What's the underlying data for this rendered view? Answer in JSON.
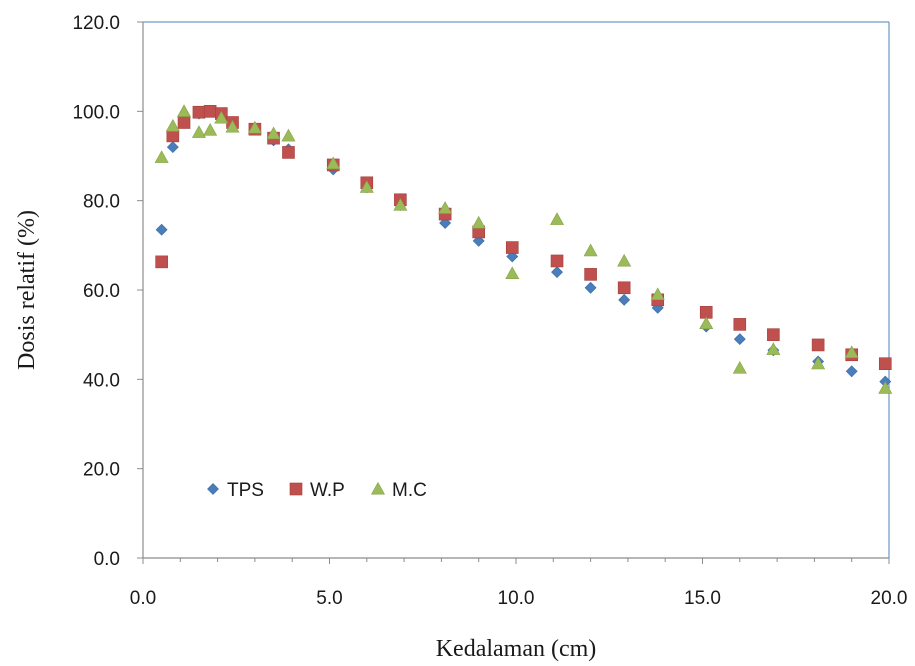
{
  "chart_data": {
    "type": "scatter",
    "title": "",
    "xlabel": "Kedalaman (cm)",
    "ylabel": "Dosis relatif (%)",
    "xlim": [
      0,
      20
    ],
    "ylim": [
      0,
      120
    ],
    "x_ticks": [
      "0.0",
      "5.0",
      "10.0",
      "15.0",
      "20.0"
    ],
    "y_ticks": [
      "0.0",
      "20.0",
      "40.0",
      "60.0",
      "80.0",
      "100.0",
      "120.0"
    ],
    "grid": false,
    "legend_position": "bottom-left",
    "series": [
      {
        "name": "TPS",
        "marker": "diamond",
        "color": "#4a7ebb",
        "points": [
          [
            0.5,
            73.5
          ],
          [
            0.8,
            92.0
          ],
          [
            1.1,
            97.5
          ],
          [
            1.5,
            99.5
          ],
          [
            1.8,
            100.0
          ],
          [
            2.1,
            99.0
          ],
          [
            2.4,
            97.5
          ],
          [
            3.0,
            96.0
          ],
          [
            3.5,
            93.5
          ],
          [
            3.9,
            91.5
          ],
          [
            5.1,
            87.0
          ],
          [
            6.0,
            83.0
          ],
          [
            6.9,
            79.0
          ],
          [
            8.1,
            75.0
          ],
          [
            9.0,
            71.0
          ],
          [
            9.9,
            67.5
          ],
          [
            11.1,
            64.0
          ],
          [
            12.0,
            60.5
          ],
          [
            12.9,
            57.8
          ],
          [
            13.8,
            56.0
          ],
          [
            15.1,
            51.8
          ],
          [
            16.0,
            49.0
          ],
          [
            16.9,
            46.5
          ],
          [
            18.1,
            44.0
          ],
          [
            19.0,
            41.8
          ],
          [
            19.9,
            39.5
          ]
        ]
      },
      {
        "name": "W.P",
        "marker": "square",
        "color": "#c0504d",
        "points": [
          [
            0.5,
            66.3
          ],
          [
            0.8,
            94.5
          ],
          [
            1.1,
            97.5
          ],
          [
            1.5,
            99.8
          ],
          [
            1.8,
            100.0
          ],
          [
            2.1,
            99.5
          ],
          [
            2.4,
            97.5
          ],
          [
            3.0,
            96.0
          ],
          [
            3.5,
            94.0
          ],
          [
            3.9,
            90.8
          ],
          [
            5.1,
            88.0
          ],
          [
            6.0,
            84.0
          ],
          [
            6.9,
            80.2
          ],
          [
            8.1,
            77.0
          ],
          [
            9.0,
            73.0
          ],
          [
            9.9,
            69.5
          ],
          [
            11.1,
            66.5
          ],
          [
            12.0,
            63.5
          ],
          [
            12.9,
            60.5
          ],
          [
            13.8,
            57.8
          ],
          [
            15.1,
            55.0
          ],
          [
            16.0,
            52.3
          ],
          [
            16.9,
            50.0
          ],
          [
            18.1,
            47.7
          ],
          [
            19.0,
            45.5
          ],
          [
            19.9,
            43.5
          ]
        ]
      },
      {
        "name": "M.C",
        "marker": "triangle",
        "color": "#9bbb59",
        "points": [
          [
            0.5,
            89.7
          ],
          [
            0.8,
            96.7
          ],
          [
            1.1,
            100.0
          ],
          [
            1.5,
            95.3
          ],
          [
            1.8,
            95.8
          ],
          [
            2.1,
            98.5
          ],
          [
            2.4,
            96.5
          ],
          [
            3.0,
            96.3
          ],
          [
            3.5,
            95.0
          ],
          [
            3.9,
            94.5
          ],
          [
            5.1,
            88.3
          ],
          [
            6.0,
            83.0
          ],
          [
            6.9,
            79.0
          ],
          [
            8.1,
            78.3
          ],
          [
            9.0,
            75.0
          ],
          [
            9.9,
            63.7
          ],
          [
            11.1,
            75.8
          ],
          [
            12.0,
            68.8
          ],
          [
            12.9,
            66.5
          ],
          [
            13.8,
            59.0
          ],
          [
            15.1,
            52.5
          ],
          [
            16.0,
            42.5
          ],
          [
            16.9,
            46.7
          ],
          [
            18.1,
            43.5
          ],
          [
            19.0,
            46.0
          ],
          [
            19.9,
            38.0
          ]
        ]
      }
    ]
  }
}
